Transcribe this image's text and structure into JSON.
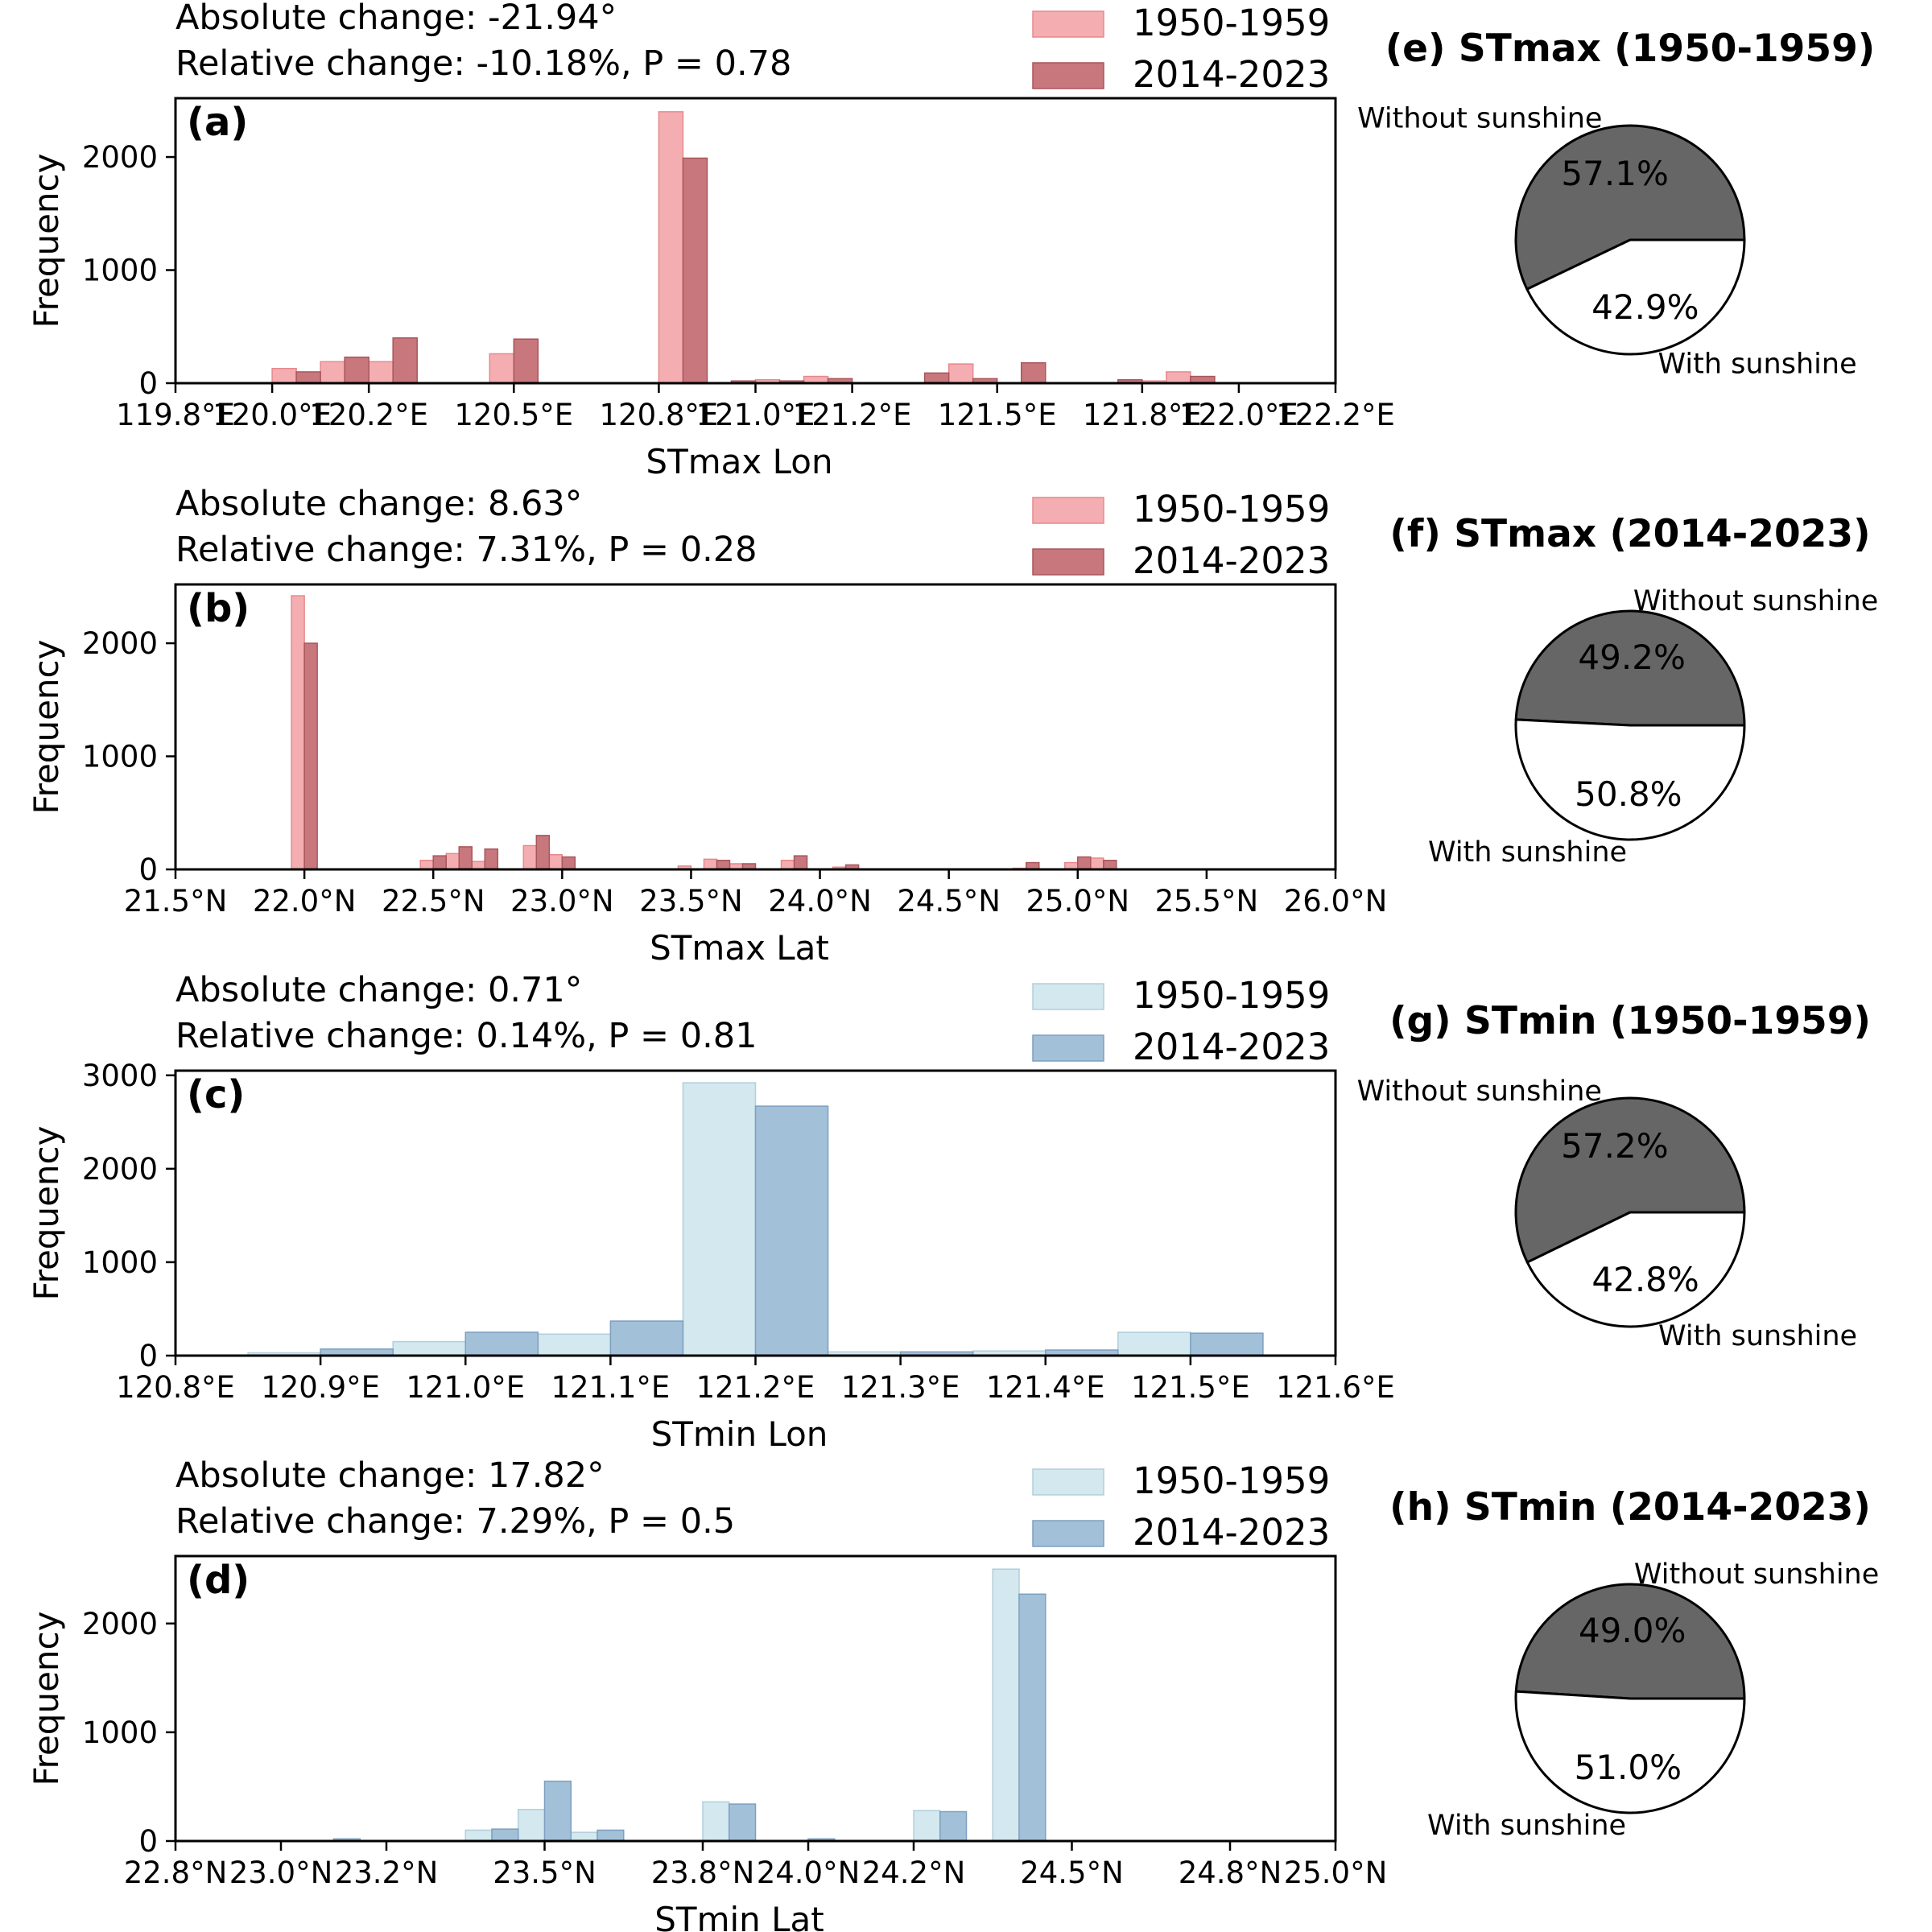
{
  "chart_data": [
    {
      "type": "bar",
      "panel": "(a)",
      "xlabel": "STmax Lon",
      "ylabel": "Frequency",
      "xlim": [
        119.8,
        122.2
      ],
      "ylim": [
        0,
        2520
      ],
      "xticks": [
        119.8,
        120.0,
        120.2,
        120.5,
        120.8,
        121.0,
        121.2,
        121.5,
        121.8,
        122.0,
        122.2
      ],
      "xtick_labels": [
        "119.8°E",
        "120.0°E",
        "120.2°E",
        "120.5°E",
        "120.8°E",
        "121.0°E",
        "121.2°E",
        "121.5°E",
        "121.8°E",
        "122.0°E",
        "122.2°E"
      ],
      "yticks": [
        0,
        1000,
        2000
      ],
      "ytick_labels": [
        "0",
        "1000",
        "2000"
      ],
      "bar_width": 0.05,
      "stats": {
        "absolute": "Absolute change: -21.94°",
        "relative": "Relative change: -10.18%, P = 0.78"
      },
      "series": [
        {
          "name": "1950-1959",
          "color": "#f4aeb1",
          "edge": "#e6898d",
          "x": [
            120.025,
            120.125,
            120.225,
            120.475,
            120.825,
            121.025,
            121.125,
            121.425,
            121.825,
            121.875
          ],
          "values": [
            130,
            190,
            190,
            260,
            2400,
            30,
            60,
            170,
            20,
            100
          ]
        },
        {
          "name": "2014-2023",
          "color": "#c8787d",
          "edge": "#a8565c",
          "x": [
            120.075,
            120.175,
            120.275,
            120.525,
            120.875,
            120.975,
            121.075,
            121.175,
            121.375,
            121.475,
            121.575,
            121.775,
            121.925
          ],
          "values": [
            100,
            230,
            400,
            390,
            1990,
            20,
            20,
            40,
            90,
            40,
            180,
            30,
            60
          ]
        }
      ]
    },
    {
      "type": "bar",
      "panel": "(b)",
      "xlabel": "STmax Lat",
      "ylabel": "Frequency",
      "xlim": [
        21.5,
        26.0
      ],
      "ylim": [
        0,
        2520
      ],
      "xticks": [
        21.5,
        22.0,
        22.5,
        23.0,
        23.5,
        24.0,
        24.5,
        25.0,
        25.5,
        26.0
      ],
      "xtick_labels": [
        "21.5°N",
        "22.0°N",
        "22.5°N",
        "23.0°N",
        "23.5°N",
        "24.0°N",
        "24.5°N",
        "25.0°N",
        "25.5°N",
        "26.0°N"
      ],
      "yticks": [
        0,
        1000,
        2000
      ],
      "ytick_labels": [
        "0",
        "1000",
        "2000"
      ],
      "bar_width": 0.05,
      "stats": {
        "absolute": "Absolute change: 8.63°",
        "relative": "Relative change: 7.31%, P = 0.28"
      },
      "series": [
        {
          "name": "1950-1959",
          "color": "#f4aeb1",
          "edge": "#e6898d",
          "x": [
            21.975,
            22.475,
            22.575,
            22.675,
            22.875,
            22.975,
            23.475,
            23.575,
            23.675,
            23.875,
            24.075,
            24.775,
            24.975,
            25.075
          ],
          "values": [
            2420,
            80,
            140,
            70,
            210,
            130,
            30,
            90,
            50,
            80,
            20,
            10,
            60,
            100
          ]
        },
        {
          "name": "2014-2023",
          "color": "#c8787d",
          "edge": "#a8565c",
          "x": [
            22.025,
            22.525,
            22.625,
            22.725,
            22.925,
            23.025,
            23.625,
            23.725,
            23.925,
            24.125,
            24.825,
            25.025,
            25.125
          ],
          "values": [
            2000,
            120,
            200,
            180,
            300,
            110,
            80,
            50,
            120,
            40,
            60,
            110,
            80
          ]
        }
      ]
    },
    {
      "type": "bar",
      "panel": "(c)",
      "xlabel": "STmin Lon",
      "ylabel": "Frequency",
      "xlim": [
        120.8,
        121.6
      ],
      "ylim": [
        0,
        3050
      ],
      "xticks": [
        120.8,
        120.9,
        121.0,
        121.1,
        121.2,
        121.3,
        121.4,
        121.5,
        121.6
      ],
      "xtick_labels": [
        "120.8°E",
        "120.9°E",
        "121.0°E",
        "121.1°E",
        "121.2°E",
        "121.3°E",
        "121.4°E",
        "121.5°E",
        "121.6°E"
      ],
      "yticks": [
        0,
        1000,
        2000,
        3000
      ],
      "ytick_labels": [
        "0",
        "1000",
        "2000",
        "3000"
      ],
      "bar_width": 0.05,
      "stats": {
        "absolute": "Absolute change: 0.71°",
        "relative": "Relative change: 0.14%, P = 0.81"
      },
      "series": [
        {
          "name": "1950-1959",
          "color": "#d3e8ef",
          "edge": "#b0cfdb",
          "x": [
            120.875,
            120.975,
            121.075,
            121.175,
            121.275,
            121.375,
            121.475
          ],
          "values": [
            30,
            150,
            230,
            2920,
            40,
            50,
            250
          ]
        },
        {
          "name": "2014-2023",
          "color": "#a3c0d9",
          "edge": "#7d9fc0",
          "x": [
            120.925,
            121.025,
            121.125,
            121.225,
            121.325,
            121.425,
            121.525
          ],
          "values": [
            70,
            250,
            370,
            2670,
            40,
            60,
            240
          ]
        }
      ]
    },
    {
      "type": "bar",
      "panel": "(d)",
      "xlabel": "STmin Lat",
      "ylabel": "Frequency",
      "xlim": [
        22.8,
        25.0
      ],
      "ylim": [
        0,
        2620
      ],
      "xticks": [
        22.8,
        23.0,
        23.2,
        23.5,
        23.8,
        24.0,
        24.2,
        24.5,
        24.8,
        25.0
      ],
      "xtick_labels": [
        "22.8°N",
        "23.0°N",
        "23.2°N",
        "23.5°N",
        "23.8°N",
        "24.0°N",
        "24.2°N",
        "24.5°N",
        "24.8°N",
        "25.0°N"
      ],
      "yticks": [
        0,
        1000,
        2000
      ],
      "ytick_labels": [
        "0",
        "1000",
        "2000"
      ],
      "bar_width": 0.05,
      "stats": {
        "absolute": "Absolute change: 17.82°",
        "relative": "Relative change: 7.29%, P = 0.5"
      },
      "series": [
        {
          "name": "1950-1959",
          "color": "#d3e8ef",
          "edge": "#b0cfdb",
          "x": [
            23.375,
            23.475,
            23.575,
            23.825,
            24.225,
            24.375
          ],
          "values": [
            100,
            290,
            80,
            360,
            280,
            2500
          ]
        },
        {
          "name": "2014-2023",
          "color": "#a3c0d9",
          "edge": "#7d9fc0",
          "x": [
            23.125,
            23.425,
            23.525,
            23.625,
            23.875,
            24.025,
            24.275,
            24.425
          ],
          "values": [
            20,
            110,
            550,
            100,
            340,
            20,
            270,
            2270
          ]
        }
      ]
    },
    {
      "type": "pie",
      "title": "(e) STmax (1950-1959)",
      "labels": [
        "Without sunshine",
        "With sunshine"
      ],
      "values": [
        57.1,
        42.9
      ],
      "pct_labels": [
        "57.1%",
        "42.9%"
      ],
      "colors": [
        "#666666",
        "#ffffff"
      ]
    },
    {
      "type": "pie",
      "title": "(f) STmax (2014-2023)",
      "labels": [
        "Without sunshine",
        "With sunshine"
      ],
      "values": [
        49.2,
        50.8
      ],
      "pct_labels": [
        "49.2%",
        "50.8%"
      ],
      "colors": [
        "#666666",
        "#ffffff"
      ]
    },
    {
      "type": "pie",
      "title": "(g) STmin (1950-1959)",
      "labels": [
        "Without sunshine",
        "With sunshine"
      ],
      "values": [
        57.2,
        42.8
      ],
      "pct_labels": [
        "57.2%",
        "42.8%"
      ],
      "colors": [
        "#666666",
        "#ffffff"
      ]
    },
    {
      "type": "pie",
      "title": "(h) STmin (2014-2023)",
      "labels": [
        "Without sunshine",
        "With sunshine"
      ],
      "values": [
        49.0,
        51.0
      ],
      "pct_labels": [
        "49.0%",
        "51.0%"
      ],
      "colors": [
        "#666666",
        "#ffffff"
      ]
    }
  ]
}
